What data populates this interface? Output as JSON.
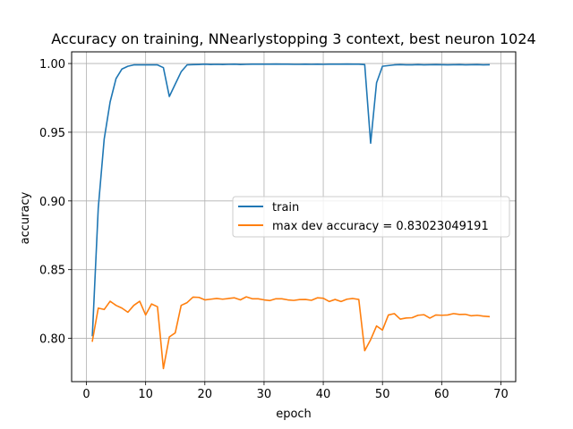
{
  "chart_data": {
    "type": "line",
    "title": "Accuracy on training, NNearlystopping 3 context, best neuron 1024",
    "xlabel": "epoch",
    "ylabel": "accuracy",
    "xlim": [
      -2.5,
      72.5
    ],
    "ylim": [
      0.7685,
      1.0085
    ],
    "xticks": [
      0,
      10,
      20,
      30,
      40,
      50,
      60,
      70
    ],
    "xtick_labels": [
      "0",
      "10",
      "20",
      "30",
      "40",
      "50",
      "60",
      "70"
    ],
    "yticks": [
      0.8,
      0.85,
      0.9,
      0.95,
      1.0
    ],
    "ytick_labels": [
      "0.80",
      "0.85",
      "0.90",
      "0.95",
      "1.00"
    ],
    "grid": true,
    "legend_position": "center-right",
    "x": [
      1,
      2,
      3,
      4,
      5,
      6,
      7,
      8,
      9,
      10,
      11,
      12,
      13,
      14,
      15,
      16,
      17,
      18,
      19,
      20,
      21,
      22,
      23,
      24,
      25,
      26,
      27,
      28,
      29,
      30,
      31,
      32,
      33,
      34,
      35,
      36,
      37,
      38,
      39,
      40,
      41,
      42,
      43,
      44,
      45,
      46,
      47,
      48,
      49,
      50,
      51,
      52,
      53,
      54,
      55,
      56,
      57,
      58,
      59,
      60,
      61,
      62,
      63,
      64,
      65,
      66,
      67,
      68
    ],
    "series": [
      {
        "name": "train",
        "color": "#1f77b4",
        "values": [
          0.802,
          0.895,
          0.945,
          0.972,
          0.989,
          0.996,
          0.998,
          0.999,
          0.999,
          0.999,
          0.999,
          0.999,
          0.997,
          0.976,
          0.985,
          0.994,
          0.999,
          0.9992,
          0.9993,
          0.9995,
          0.9993,
          0.9994,
          0.9993,
          0.9994,
          0.9995,
          0.9993,
          0.9994,
          0.9995,
          0.9995,
          0.9995,
          0.9995,
          0.9996,
          0.9995,
          0.9995,
          0.9994,
          0.9994,
          0.9995,
          0.9994,
          0.9995,
          0.9994,
          0.9995,
          0.9995,
          0.9995,
          0.9996,
          0.9995,
          0.9995,
          0.9992,
          0.942,
          0.986,
          0.998,
          0.9985,
          0.999,
          0.9992,
          0.999,
          0.999,
          0.9992,
          0.999,
          0.9991,
          0.9992,
          0.9991,
          0.999,
          0.9991,
          0.9992,
          0.999,
          0.9991,
          0.9992,
          0.999,
          0.9991
        ]
      },
      {
        "name": "max dev accuracy = 0.83023049191",
        "color": "#ff7f0e",
        "values": [
          0.798,
          0.822,
          0.821,
          0.827,
          0.824,
          0.822,
          0.819,
          0.824,
          0.827,
          0.817,
          0.825,
          0.823,
          0.778,
          0.801,
          0.804,
          0.824,
          0.826,
          0.83,
          0.8298,
          0.828,
          0.8285,
          0.829,
          0.8285,
          0.829,
          0.8295,
          0.828,
          0.8302,
          0.8288,
          0.8288,
          0.828,
          0.8275,
          0.8288,
          0.8288,
          0.828,
          0.8276,
          0.8282,
          0.8283,
          0.8277,
          0.8295,
          0.8292,
          0.8268,
          0.8283,
          0.8268,
          0.8285,
          0.829,
          0.8283,
          0.791,
          0.799,
          0.809,
          0.806,
          0.817,
          0.818,
          0.814,
          0.8148,
          0.815,
          0.8168,
          0.8172,
          0.8147,
          0.817,
          0.8168,
          0.817,
          0.818,
          0.8174,
          0.8175,
          0.8164,
          0.8168,
          0.8162,
          0.8158
        ]
      }
    ]
  }
}
